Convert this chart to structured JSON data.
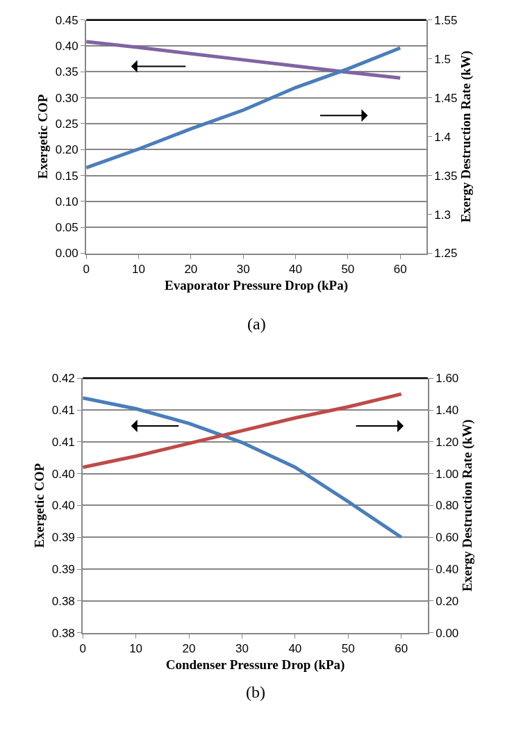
{
  "chart_data": [
    {
      "type": "line",
      "xlabel": "Evaporator Pressure Drop (kPa)",
      "ylabel": "Exergetic COP",
      "y2label": "Exergy Destruction Rate (kW)",
      "annotations": [
        "(a)"
      ],
      "x": [
        0,
        10,
        20,
        30,
        40,
        50,
        60
      ],
      "xlim": [
        0,
        65
      ],
      "xticks": [
        0,
        10,
        20,
        30,
        40,
        50,
        60
      ],
      "ylim": [
        0,
        0.45
      ],
      "yticks": [
        {
          "value": 0,
          "label": "0.00"
        },
        {
          "value": 0.05,
          "label": "0.05"
        },
        {
          "value": 0.1,
          "label": "0.10"
        },
        {
          "value": 0.15,
          "label": "0.15"
        },
        {
          "value": 0.2,
          "label": "0.20"
        },
        {
          "value": 0.25,
          "label": "0.25"
        },
        {
          "value": 0.3,
          "label": "0.30"
        },
        {
          "value": 0.35,
          "label": "0.35"
        },
        {
          "value": 0.4,
          "label": "0.40"
        },
        {
          "value": 0.45,
          "label": "0.45"
        }
      ],
      "y2lim": [
        1.25,
        1.55
      ],
      "y2ticks": [
        1.25,
        1.3,
        1.35,
        1.4,
        1.45,
        1.5,
        1.55
      ],
      "grid": "y",
      "marker": "none",
      "line_style": "solid",
      "series": [
        {
          "color": "#8064a2",
          "values": [
            0.408,
            0.397,
            0.385,
            0.373,
            0.361,
            0.349,
            0.338
          ]
        },
        {
          "color": "#4a7ebb",
          "axis": "y2",
          "values": [
            1.36,
            1.384,
            1.41,
            1.434,
            1.463,
            1.487,
            1.514
          ]
        }
      ]
    },
    {
      "type": "line",
      "xlabel": "Condenser Pressure Drop (kPa)",
      "ylabel": "Exergetic COP",
      "y2label": "Exergy Destruction Rate (kW)",
      "annotations": [
        "(b)"
      ],
      "x": [
        0,
        10,
        20,
        30,
        40,
        50,
        60
      ],
      "xlim": [
        0,
        65
      ],
      "xticks": [
        0,
        10,
        20,
        30,
        40,
        50,
        60
      ],
      "ylim": [
        0.38,
        0.42
      ],
      "yticks": [
        {
          "value": 0.38,
          "label": "0.38"
        },
        {
          "value": 0.385,
          "label": "0.38"
        },
        {
          "value": 0.39,
          "label": "0.39"
        },
        {
          "value": 0.395,
          "label": "0.39"
        },
        {
          "value": 0.4,
          "label": "0.40"
        },
        {
          "value": 0.405,
          "label": "0.40"
        },
        {
          "value": 0.41,
          "label": "0.41"
        },
        {
          "value": 0.415,
          "label": "0.41"
        },
        {
          "value": 0.42,
          "label": "0.42"
        }
      ],
      "y2lim": [
        0,
        1.6
      ],
      "y2ticks": [
        {
          "value": 0,
          "label": "0.00"
        },
        {
          "value": 0.2,
          "label": "0.20"
        },
        {
          "value": 0.4,
          "label": "0.40"
        },
        {
          "value": 0.6,
          "label": "0.60"
        },
        {
          "value": 0.8,
          "label": "0.80"
        },
        {
          "value": 1.0,
          "label": "1.00"
        },
        {
          "value": 1.2,
          "label": "1.20"
        },
        {
          "value": 1.4,
          "label": "1.40"
        },
        {
          "value": 1.6,
          "label": "1.60"
        }
      ],
      "grid": "y",
      "marker": "none",
      "line_style": "solid",
      "series": [
        {
          "color": "#4a7ebb",
          "values": [
            0.4169,
            0.4152,
            0.4129,
            0.4099,
            0.406,
            0.4006,
            0.395
          ]
        },
        {
          "color": "#be4b48",
          "axis": "y2",
          "values": [
            1.04,
            1.11,
            1.19,
            1.27,
            1.35,
            1.42,
            1.5
          ]
        }
      ]
    }
  ]
}
